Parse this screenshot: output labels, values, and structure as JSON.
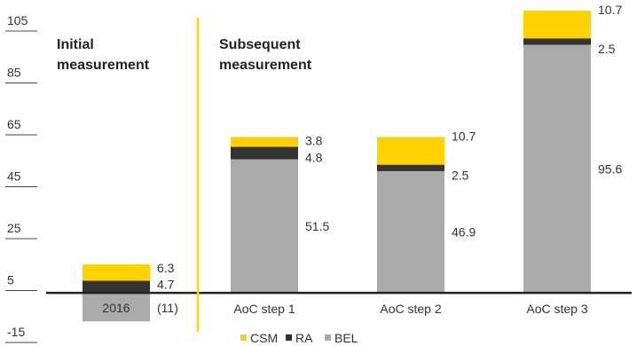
{
  "chart_data": {
    "type": "bar",
    "stacked": true,
    "categories": [
      "2016",
      "AoC step 1",
      "AoC step 2",
      "AoC step 3"
    ],
    "series": [
      {
        "name": "BEL",
        "color": "#aaaaaa",
        "values": [
          -11,
          51.5,
          46.9,
          95.6
        ]
      },
      {
        "name": "RA",
        "color": "#333333",
        "values": [
          4.7,
          4.8,
          2.5,
          2.5
        ]
      },
      {
        "name": "CSM",
        "color": "#ffd200",
        "values": [
          6.3,
          3.8,
          10.7,
          10.7
        ]
      }
    ],
    "data_labels": {
      "BEL": [
        "(11)",
        "51.5",
        "46.9",
        "95.6"
      ],
      "RA": [
        "4.7",
        "4.8",
        "2.5",
        "2.5"
      ],
      "CSM": [
        "6.3",
        "3.8",
        "10.7",
        "10.7"
      ]
    },
    "y_ticks": [
      -15,
      5,
      25,
      45,
      65,
      85,
      105
    ],
    "ylim": [
      -15,
      105
    ],
    "legend": [
      "CSM",
      "RA",
      "BEL"
    ],
    "legend_position": "bottom",
    "section_labels": {
      "initial": [
        "Initial",
        "measurement"
      ],
      "subsequent": [
        "Subsequent",
        "measurement"
      ]
    },
    "divider_color": "#ffd200",
    "grid": false
  }
}
